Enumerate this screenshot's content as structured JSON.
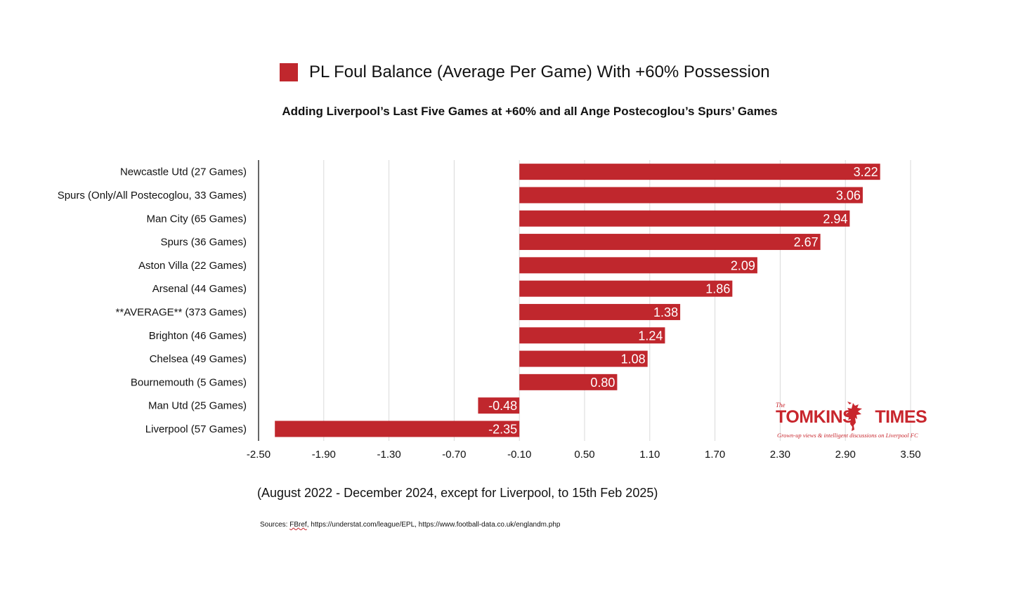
{
  "legend": {
    "label": "PL Foul Balance (Average Per Game) With +60% Possession",
    "color": "#c0272d"
  },
  "subtitle": "Adding Liverpool’s Last Five Games at +60% and all Ange Postecoglou’s Spurs’ Games",
  "footnote": "(August 2022 - December 2024, except for Liverpool, to 15th Feb 2025)",
  "sources": {
    "prefix": "Sources: ",
    "fbref": "FBref",
    "rest": ", https://understat.com/league/EPL, https://www.football-data.co.uk/englandm.php"
  },
  "branding": {
    "small": "The",
    "name_part1": "TOMKINS",
    "name_part2": "TIMES",
    "tagline": "Grown-up views & intelligent discussions on Liverpool FC",
    "emblem_icon": "liver-bird-icon"
  },
  "chart_data": {
    "type": "bar",
    "orientation": "horizontal",
    "categories": [
      "Newcastle Utd (27 Games)",
      "Spurs (Only/All Postecoglou, 33 Games)",
      "Man City (65 Games)",
      "Spurs (36 Games)",
      "Aston Villa (22 Games)",
      "Arsenal (44 Games)",
      "**AVERAGE** (373 Games)",
      "Brighton (46 Games)",
      "Chelsea (49 Games)",
      "Bournemouth (5 Games)",
      "Man Utd (25 Games)",
      "Liverpool (57 Games)"
    ],
    "values": [
      3.22,
      3.06,
      2.94,
      2.67,
      2.09,
      1.86,
      1.38,
      1.24,
      1.08,
      0.8,
      -0.48,
      -2.35
    ],
    "value_labels": [
      "3.22",
      "3.06",
      "2.94",
      "2.67",
      "2.09",
      "1.86",
      "1.38",
      "1.24",
      "1.08",
      "0.80",
      "-0.48",
      "-2.35"
    ],
    "series_name": "PL Foul Balance (Average Per Game) With +60% Possession",
    "xlim": [
      -2.5,
      3.5
    ],
    "xticks": [
      -2.5,
      -1.9,
      -1.3,
      -0.7,
      -0.1,
      0.5,
      1.1,
      1.7,
      2.3,
      2.9,
      3.5
    ],
    "xtick_labels": [
      "-2.50",
      "-1.90",
      "-1.30",
      "-0.70",
      "-0.10",
      "0.50",
      "1.10",
      "1.70",
      "2.30",
      "2.90",
      "3.50"
    ],
    "bar_base": -0.1,
    "grid": "vertical",
    "legend_position": "top",
    "bar_color": "#c0272d",
    "grid_color": "#d9d9d9",
    "axis_color": "#333333",
    "label_color": "#ffffff"
  }
}
